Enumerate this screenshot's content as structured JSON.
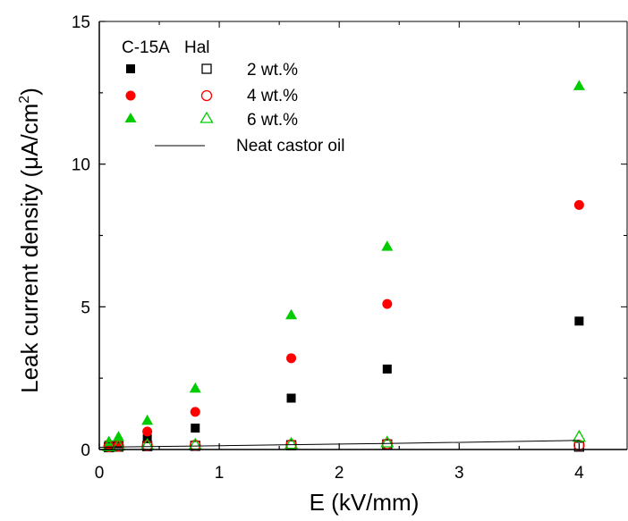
{
  "chart_data": {
    "type": "scatter",
    "xlabel": "E (kV/mm)",
    "ylabel": "Leak current density (μA/cm²)",
    "ylabel_parts": {
      "main": "Leak current density (μA/cm",
      "sup": "2",
      "close": ")"
    },
    "xlim": [
      0,
      4.4
    ],
    "ylim": [
      0,
      15
    ],
    "xticks": [
      "0",
      "1",
      "2",
      "3",
      "4"
    ],
    "xtick_values": [
      0,
      1,
      2,
      3,
      4
    ],
    "yticks": [
      "0",
      "5",
      "10",
      "15"
    ],
    "ytick_values": [
      0,
      5,
      10,
      15
    ],
    "legend": {
      "position": "top-left",
      "header_left": "C-15A",
      "header_right": "Hal",
      "entries": [
        "2 wt.%",
        "4 wt.%",
        "6 wt.%",
        "Neat castor oil"
      ]
    },
    "series": [
      {
        "name": "2 wt.%",
        "group": "C-15A",
        "marker": "square-filled",
        "color": "#000000",
        "x": [
          0.08,
          0.16,
          0.4,
          0.8,
          1.6,
          2.4,
          4.0
        ],
        "y": [
          0.15,
          0.2,
          0.38,
          0.75,
          1.8,
          2.82,
          4.5
        ]
      },
      {
        "name": "4 wt.%",
        "group": "C-15A",
        "marker": "circle-filled",
        "color": "#ff0000",
        "x": [
          0.08,
          0.16,
          0.4,
          0.8,
          1.6,
          2.4,
          4.0
        ],
        "y": [
          0.18,
          0.27,
          0.63,
          1.32,
          3.2,
          5.1,
          8.57
        ]
      },
      {
        "name": "6 wt.%",
        "group": "C-15A",
        "marker": "triangle-filled",
        "color": "#00cc00",
        "x": [
          0.08,
          0.16,
          0.4,
          0.8,
          1.6,
          2.4,
          4.0
        ],
        "y": [
          0.28,
          0.45,
          1.02,
          2.15,
          4.72,
          7.12,
          12.75
        ]
      },
      {
        "name": "2 wt.%",
        "group": "Hal",
        "marker": "square-open",
        "color": "#000000",
        "x": [
          0.08,
          0.16,
          0.4,
          0.8,
          1.6,
          2.4,
          4.0
        ],
        "y": [
          0.08,
          0.1,
          0.12,
          0.13,
          0.15,
          0.18,
          0.1
        ]
      },
      {
        "name": "4 wt.%",
        "group": "Hal",
        "marker": "circle-open",
        "color": "#ff0000",
        "x": [
          0.08,
          0.16,
          0.4,
          0.8,
          1.6,
          2.4,
          4.0
        ],
        "y": [
          0.1,
          0.12,
          0.14,
          0.15,
          0.17,
          0.2,
          0.15
        ]
      },
      {
        "name": "6 wt.%",
        "group": "Hal",
        "marker": "triangle-open",
        "color": "#00cc00",
        "x": [
          0.08,
          0.16,
          0.4,
          0.8,
          1.6,
          2.4,
          4.0
        ],
        "y": [
          0.12,
          0.14,
          0.16,
          0.17,
          0.2,
          0.25,
          0.45
        ]
      },
      {
        "name": "Neat castor oil",
        "marker": "line",
        "color": "#000000",
        "x": [
          0.0,
          0.4,
          0.8,
          1.6,
          2.4,
          4.0
        ],
        "y": [
          0.08,
          0.1,
          0.12,
          0.17,
          0.21,
          0.32
        ]
      }
    ]
  }
}
